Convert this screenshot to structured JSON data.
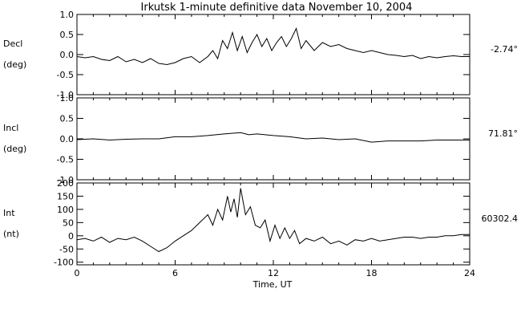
{
  "chart_data": {
    "type": "line",
    "title": "Irkutsk 1-minute definitive data November 10, 2004",
    "xlabel": "Time, UT",
    "xlim": [
      0,
      24
    ],
    "xticks": [
      "0",
      "6",
      "12",
      "18",
      "24"
    ],
    "panels": [
      {
        "label_top": "Decl",
        "label_bottom": "(deg)",
        "baseline": "-2.74°",
        "ylim": [
          -1.0,
          1.0
        ],
        "yticks": [
          "1.0",
          "0.5",
          "0.0",
          "-0.5",
          "-1.0"
        ],
        "tick_values": [
          1.0,
          0.5,
          0.0,
          -0.5,
          -1.0
        ],
        "x": [
          0,
          0.5,
          1,
          1.5,
          2,
          2.5,
          3,
          3.5,
          4,
          4.5,
          5,
          5.5,
          6,
          6.5,
          7,
          7.5,
          8,
          8.3,
          8.6,
          8.9,
          9.2,
          9.5,
          9.8,
          10.1,
          10.4,
          10.7,
          11,
          11.3,
          11.6,
          11.9,
          12.2,
          12.5,
          12.8,
          13.1,
          13.4,
          13.7,
          14,
          14.5,
          15,
          15.5,
          16,
          16.5,
          17,
          17.5,
          18,
          18.5,
          19,
          19.5,
          20,
          20.5,
          21,
          21.5,
          22,
          22.5,
          23,
          23.5,
          24
        ],
        "values": [
          -0.05,
          -0.08,
          -0.05,
          -0.12,
          -0.15,
          -0.05,
          -0.18,
          -0.12,
          -0.2,
          -0.1,
          -0.22,
          -0.25,
          -0.2,
          -0.1,
          -0.05,
          -0.2,
          -0.05,
          0.1,
          -0.1,
          0.35,
          0.15,
          0.55,
          0.1,
          0.45,
          0.05,
          0.3,
          0.5,
          0.2,
          0.4,
          0.1,
          0.3,
          0.45,
          0.2,
          0.4,
          0.65,
          0.15,
          0.35,
          0.1,
          0.3,
          0.2,
          0.25,
          0.15,
          0.1,
          0.05,
          0.1,
          0.05,
          0.0,
          -0.02,
          -0.05,
          -0.02,
          -0.1,
          -0.05,
          -0.08,
          -0.05,
          -0.03,
          -0.05,
          -0.05
        ]
      },
      {
        "label_top": "Incl",
        "label_bottom": "(deg)",
        "baseline": "71.81°",
        "ylim": [
          -1.0,
          1.0
        ],
        "yticks": [
          "1.0",
          "0.5",
          "0.0",
          "-0.5",
          "-1.0"
        ],
        "tick_values": [
          1.0,
          0.5,
          0.0,
          -0.5,
          -1.0
        ],
        "x": [
          0,
          1,
          2,
          3,
          4,
          5,
          6,
          7,
          8,
          9,
          10,
          10.5,
          11,
          12,
          13,
          14,
          15,
          16,
          17,
          18,
          19,
          20,
          21,
          22,
          23,
          24
        ],
        "values": [
          -0.02,
          0.0,
          -0.03,
          -0.01,
          0.0,
          0.0,
          0.05,
          0.05,
          0.08,
          0.12,
          0.15,
          0.1,
          0.12,
          0.08,
          0.05,
          0.0,
          0.02,
          -0.02,
          0.0,
          -0.08,
          -0.05,
          -0.05,
          -0.05,
          -0.03,
          -0.03,
          -0.03
        ]
      },
      {
        "label_top": "Int",
        "label_bottom": "(nt)",
        "baseline": "60302.4",
        "ylim": [
          -110,
          200
        ],
        "yticks": [
          "200",
          "150",
          "100",
          "50",
          "0",
          "-50",
          "-100"
        ],
        "tick_values": [
          200,
          150,
          100,
          50,
          0,
          -50,
          -100
        ],
        "x": [
          0,
          0.5,
          1,
          1.5,
          2,
          2.5,
          3,
          3.5,
          4,
          4.5,
          5,
          5.5,
          6,
          6.5,
          7,
          7.5,
          8,
          8.3,
          8.6,
          8.9,
          9.2,
          9.4,
          9.6,
          9.8,
          10,
          10.3,
          10.6,
          10.9,
          11.2,
          11.5,
          11.8,
          12.1,
          12.4,
          12.7,
          13,
          13.3,
          13.6,
          14,
          14.5,
          15,
          15.5,
          16,
          16.5,
          17,
          17.5,
          18,
          18.5,
          19,
          19.5,
          20,
          20.5,
          21,
          21.5,
          22,
          22.5,
          23,
          23.5,
          24
        ],
        "values": [
          -15,
          -10,
          -20,
          -5,
          -25,
          -10,
          -15,
          -5,
          -20,
          -40,
          -60,
          -45,
          -20,
          0,
          20,
          50,
          80,
          40,
          100,
          60,
          150,
          90,
          140,
          70,
          180,
          80,
          110,
          40,
          30,
          60,
          -20,
          40,
          -10,
          30,
          -10,
          20,
          -30,
          -10,
          -20,
          -5,
          -30,
          -20,
          -35,
          -15,
          -20,
          -10,
          -20,
          -15,
          -10,
          -5,
          -5,
          -10,
          -5,
          -5,
          0,
          0,
          5,
          5
        ]
      }
    ]
  }
}
